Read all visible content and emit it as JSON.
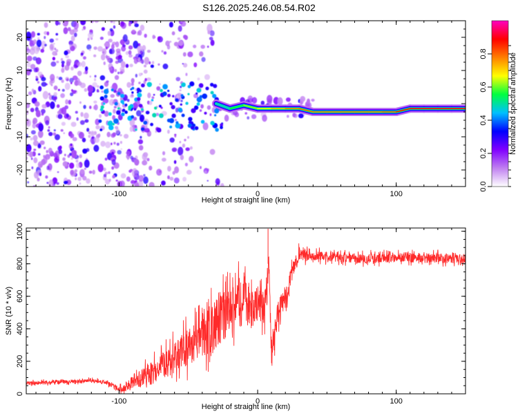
{
  "title": "S126.2025.246.08.54.R02",
  "colors": {
    "snr_line": "#ff2a2a",
    "colorbar": [
      "#ffffff",
      "#c080f0",
      "#8000ff",
      "#0000ff",
      "#00c0ff",
      "#00ff40",
      "#ffff00",
      "#ff8000",
      "#ff0000",
      "#ff00c0"
    ]
  },
  "chart_data": [
    {
      "type": "heatmap",
      "name": "spectrogram",
      "title": "S126.2025.246.08.54.R02",
      "xlabel": "Height of straight line (km)",
      "ylabel": "Frequency (Hz)",
      "xlim": [
        -167,
        150
      ],
      "ylim": [
        -25,
        25
      ],
      "xticks": [
        -100,
        0,
        100
      ],
      "xtick_labels": [
        "-100",
        "0",
        "100"
      ],
      "yticks": [
        -20,
        -10,
        0,
        10,
        20
      ],
      "ytick_labels": [
        "-20",
        "-10",
        "0",
        "10",
        "20"
      ],
      "carrier_track": {
        "x": [
          -30,
          -20,
          -10,
          0,
          10,
          20,
          30,
          40,
          50,
          60,
          70,
          80,
          90,
          100,
          110,
          120,
          130,
          140,
          150
        ],
        "frequency": [
          0,
          -1.5,
          -0.5,
          -1.5,
          -1.5,
          -1.5,
          -1.5,
          -2.5,
          -2.5,
          -2.5,
          -2.5,
          -2.5,
          -2.5,
          -2.5,
          -1.5,
          -1.5,
          -1.5,
          -1.5,
          -1.5
        ],
        "amplitude": [
          0.4,
          0.5,
          0.6,
          0.65,
          0.7,
          0.75,
          0.8,
          0.8,
          0.8,
          0.8,
          0.8,
          0.8,
          0.8,
          0.85,
          0.9,
          0.9,
          0.9,
          0.9,
          0.9
        ]
      },
      "colorbar": {
        "label": "Normalized spectral amplitude",
        "range": [
          0,
          1
        ],
        "ticks": [
          0.0,
          0.2,
          0.4,
          0.6,
          0.8
        ],
        "tick_labels": [
          "0.0",
          "0.2",
          "0.4",
          "0.6",
          "0.8"
        ]
      }
    },
    {
      "type": "line",
      "name": "snr",
      "xlabel": "Height of straight line (km)",
      "ylabel": "SNR (10 * v/v)",
      "xlim": [
        -167,
        150
      ],
      "ylim": [
        0,
        1020
      ],
      "xticks": [
        -100,
        0,
        100
      ],
      "xtick_labels": [
        "-100",
        "0",
        "100"
      ],
      "yticks": [
        0,
        200,
        400,
        600,
        800,
        1000
      ],
      "ytick_labels": [
        "0",
        "200",
        "400",
        "600",
        "800",
        "1000"
      ],
      "series": [
        {
          "name": "SNR",
          "x": [
            -167,
            -150,
            -135,
            -120,
            -110,
            -100,
            -95,
            -90,
            -80,
            -70,
            -60,
            -50,
            -40,
            -30,
            -20,
            -15,
            -10,
            -5,
            0,
            5,
            8,
            10,
            15,
            20,
            25,
            30,
            40,
            60,
            80,
            100,
            120,
            150
          ],
          "values": [
            65,
            70,
            75,
            80,
            70,
            30,
            40,
            80,
            110,
            170,
            220,
            280,
            360,
            430,
            500,
            560,
            640,
            500,
            560,
            520,
            800,
            250,
            500,
            600,
            750,
            860,
            850,
            840,
            830,
            840,
            835,
            830
          ],
          "noise_amplitude": [
            12,
            12,
            12,
            12,
            12,
            15,
            30,
            45,
            60,
            80,
            100,
            120,
            140,
            150,
            150,
            140,
            120,
            120,
            110,
            100,
            100,
            80,
            80,
            70,
            50,
            40,
            30,
            30,
            30,
            30,
            30,
            30
          ]
        }
      ]
    }
  ]
}
